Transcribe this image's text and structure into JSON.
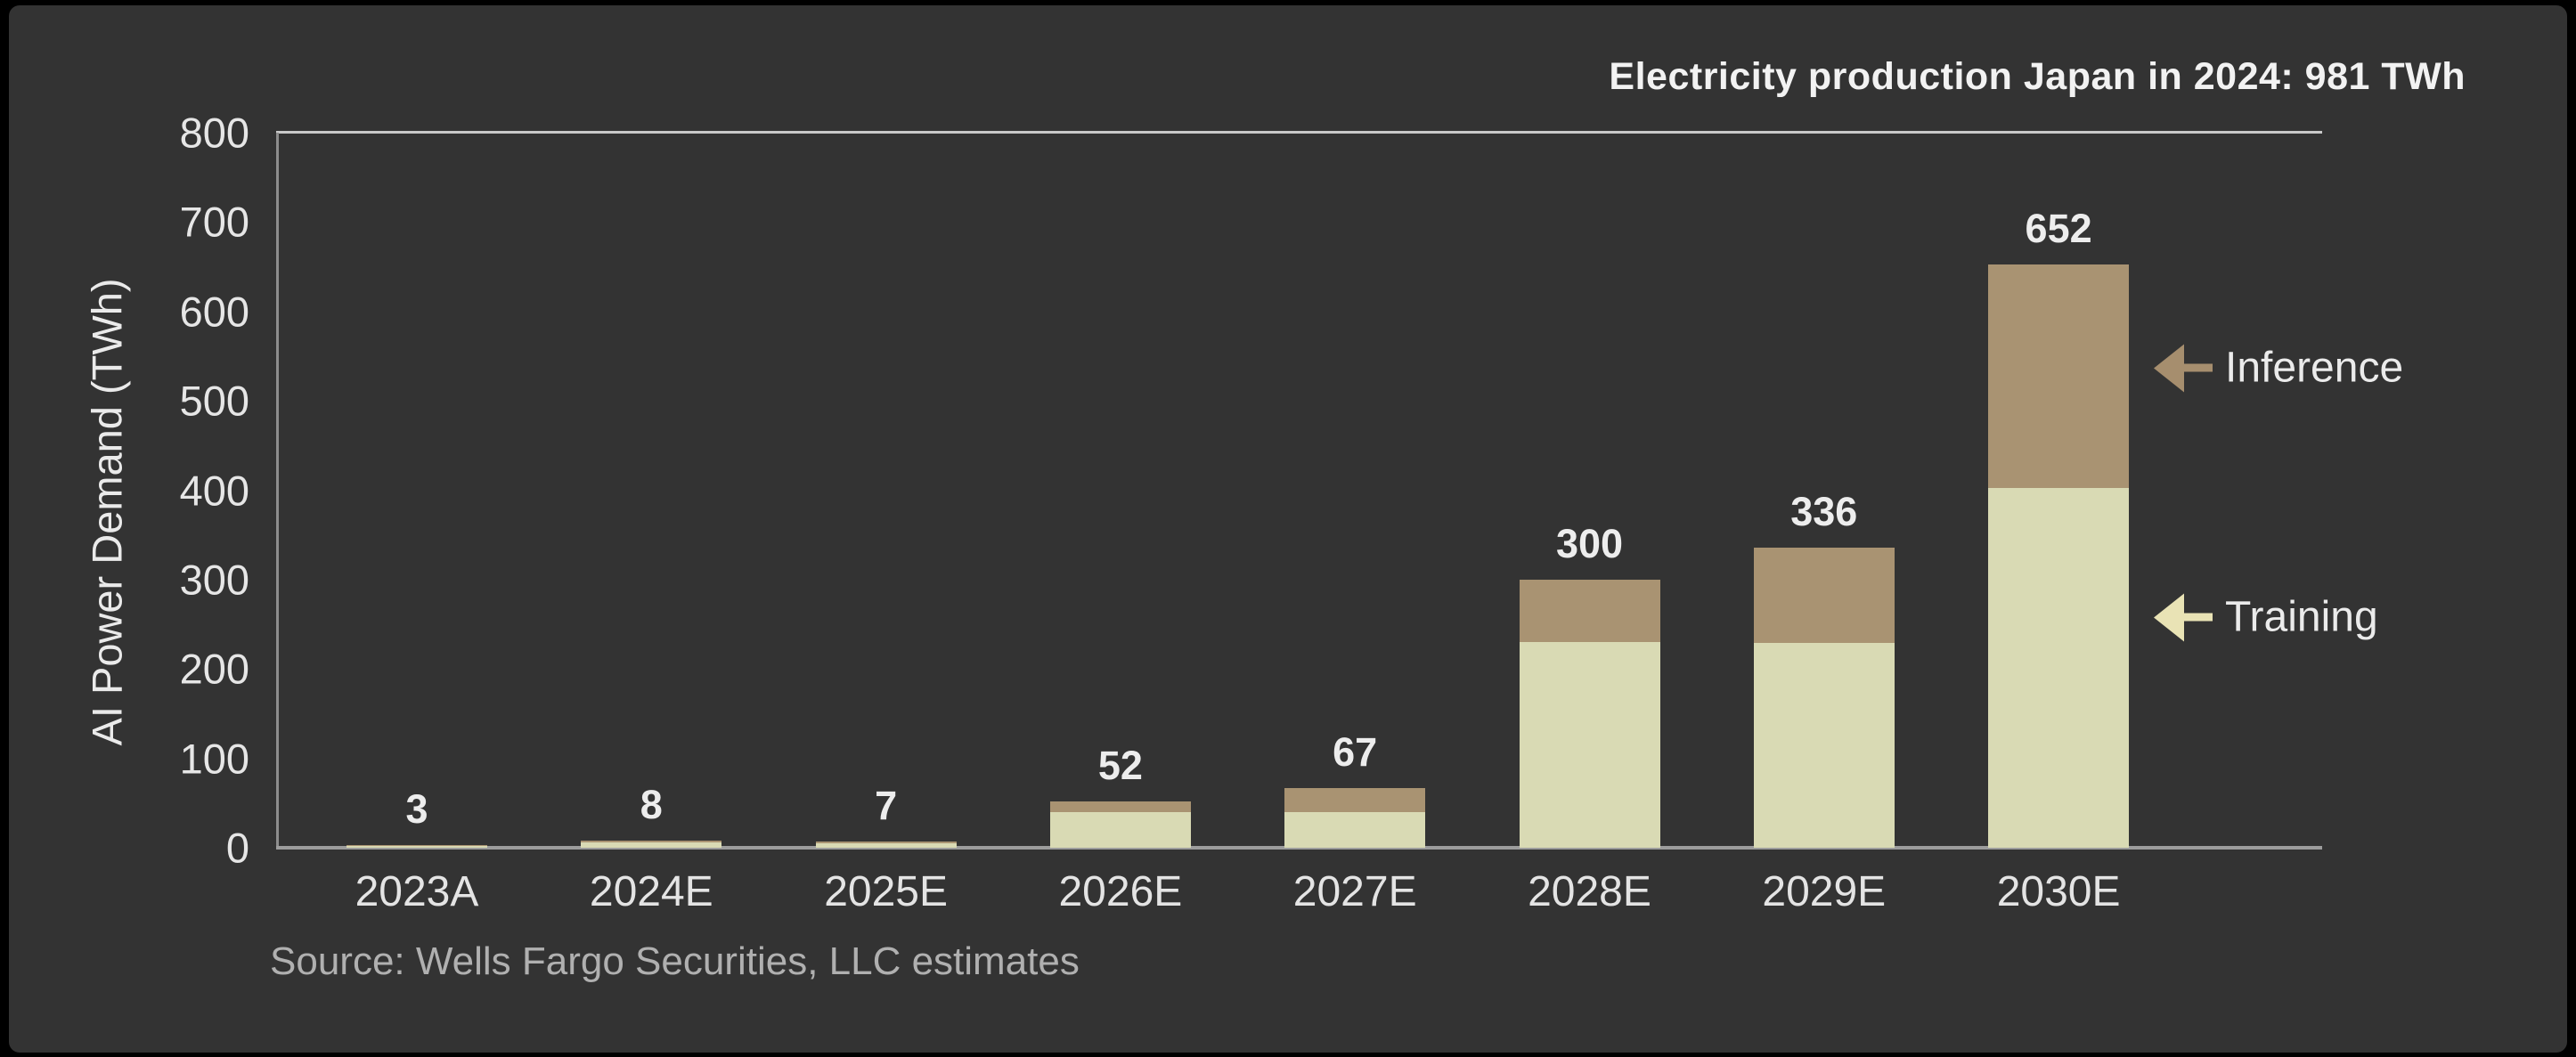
{
  "header": {
    "title": "Electricity production Japan in 2024: 981 TWh"
  },
  "chart_data": {
    "type": "bar",
    "stacked": true,
    "categories": [
      "2023A",
      "2024E",
      "2025E",
      "2026E",
      "2027E",
      "2028E",
      "2029E",
      "2030E"
    ],
    "series": [
      {
        "name": "Training",
        "color": "#d9dab4",
        "values": [
          2,
          6,
          5,
          40,
          40,
          230,
          229,
          402
        ]
      },
      {
        "name": "Inference",
        "color": "#a99372",
        "values": [
          1,
          2,
          2,
          12,
          27,
          70,
          107,
          250
        ]
      }
    ],
    "totals": [
      3,
      8,
      7,
      52,
      67,
      300,
      336,
      652
    ],
    "total_labels": [
      "3",
      "8",
      "7",
      "52",
      "67",
      "300",
      "336",
      "652"
    ],
    "title": "",
    "xlabel": "",
    "ylabel": "AI Power Demand (TWh)",
    "ylim": [
      0,
      800
    ],
    "yticks": [
      "0",
      "100",
      "200",
      "300",
      "400",
      "500",
      "600",
      "700",
      "800"
    ],
    "grid": "top-line-only",
    "legend_position": "right-arrow-annotations"
  },
  "legend": {
    "inference": {
      "label": "Inference",
      "arrow_color": "#a68e6e"
    },
    "training": {
      "label": "Training",
      "arrow_color": "#e9e3b5"
    }
  },
  "source": {
    "text": "Source: Wells Fargo Securities, LLC estimates"
  },
  "colors": {
    "canvas_background": "#000000",
    "panel_background": "#333333",
    "axis_line": "#9c9c9c",
    "top_gridline": "#c9c9c9",
    "text_primary": "#ededed",
    "text_secondary": "#b0b0b0"
  }
}
